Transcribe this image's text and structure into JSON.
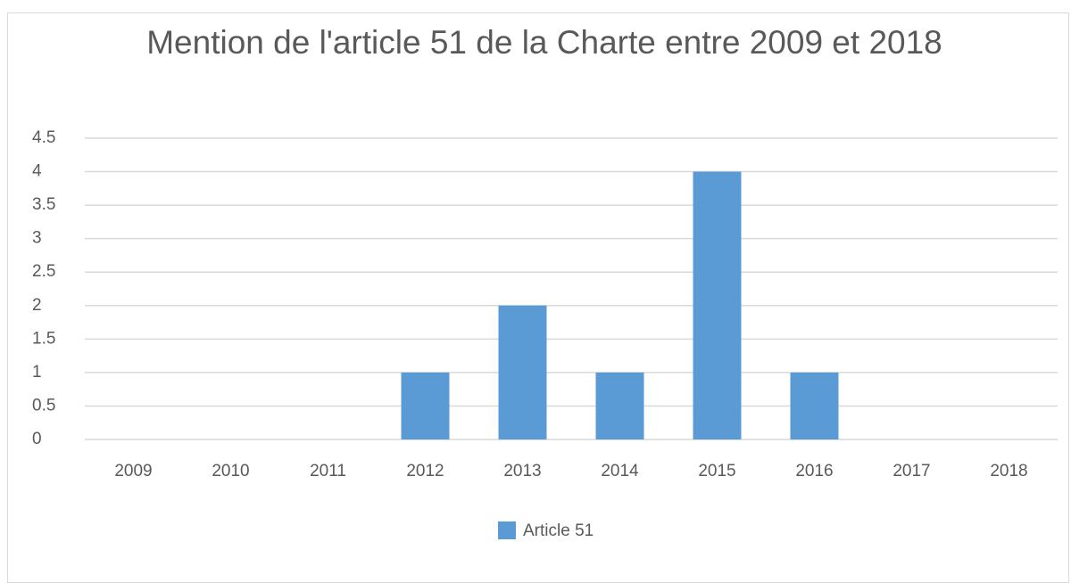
{
  "chart_data": {
    "type": "bar",
    "title": "Mention de l'article 51 de la Charte entre 2009 et 2018",
    "categories": [
      "2009",
      "2010",
      "2011",
      "2012",
      "2013",
      "2014",
      "2015",
      "2016",
      "2017",
      "2018"
    ],
    "series": [
      {
        "name": "Article 51",
        "color": "#5b9bd5",
        "values": [
          0,
          0,
          0,
          1,
          2,
          1,
          4,
          1,
          0,
          0
        ]
      }
    ],
    "ylim": [
      0,
      4.5
    ],
    "yticks": [
      0,
      0.5,
      1,
      1.5,
      2,
      2.5,
      3,
      3.5,
      4,
      4.5
    ],
    "grid": true,
    "legend": "bottom"
  }
}
